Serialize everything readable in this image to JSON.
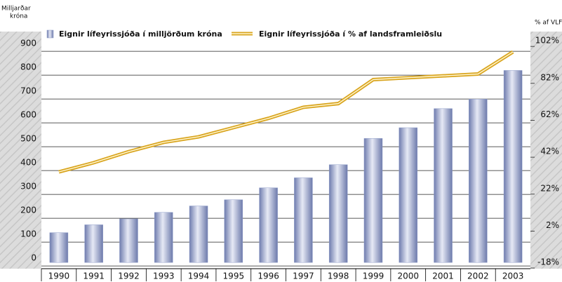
{
  "chart_data": {
    "type": "bar_line",
    "ylabel": [
      "Milljarðar",
      "króna"
    ],
    "y2label": "% af VLF",
    "categories": [
      "1990",
      "1991",
      "1992",
      "1993",
      "1994",
      "1995",
      "1996",
      "1997",
      "1998",
      "1999",
      "2000",
      "2001",
      "2002",
      "2003"
    ],
    "series": [
      {
        "name": "Eignir lífeyrissjóða í milljörðum króna",
        "type": "bar",
        "color": "#8e9cc8",
        "values": [
          125,
          158,
          183,
          210,
          237,
          263,
          313,
          355,
          410,
          520,
          565,
          645,
          685,
          805
        ]
      },
      {
        "name": "Eignir lífeyrissjóða í % af landsframleiðslu",
        "type": "line",
        "color": "#d9a520",
        "axis": "y2",
        "values": [
          31,
          36,
          42,
          47,
          50,
          55,
          60,
          66,
          68,
          81,
          82,
          83,
          84,
          96
        ]
      }
    ],
    "ylim": [
      -26,
      968
    ],
    "yticks": [
      0,
      100,
      200,
      300,
      400,
      500,
      600,
      700,
      800,
      900
    ],
    "y2lim": [
      -21.4,
      107
    ],
    "y2ticks": [
      {
        "value": -18,
        "label": "-18%"
      },
      {
        "value": 2,
        "label": "2%"
      },
      {
        "value": 22,
        "label": "22%"
      },
      {
        "value": 42,
        "label": "42%"
      },
      {
        "value": 62,
        "label": "62%"
      },
      {
        "value": 82,
        "label": "82%"
      },
      {
        "value": 102,
        "label": "102%"
      }
    ],
    "grid": true
  }
}
